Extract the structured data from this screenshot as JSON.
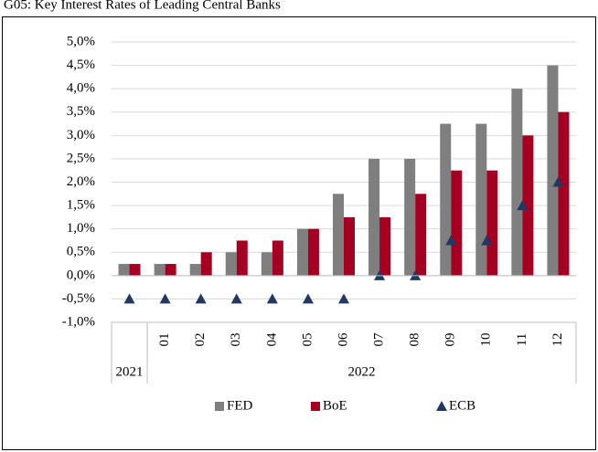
{
  "chart_data": {
    "type": "bar",
    "title": "G05: Key Interest Rates of Leading Central Banks",
    "categories": [
      null,
      "01",
      "02",
      "03",
      "04",
      "05",
      "06",
      "07",
      "08",
      "09",
      "10",
      "11",
      "12"
    ],
    "category_groups": [
      {
        "label": "2021",
        "span": 1
      },
      {
        "label": "2022",
        "span": 12
      }
    ],
    "series": [
      {
        "name": "FED",
        "color": "#7f7f7f",
        "mark": "bar",
        "values": [
          0.25,
          0.25,
          0.25,
          0.5,
          0.5,
          1.0,
          1.75,
          2.5,
          2.5,
          3.25,
          3.25,
          4.0,
          4.5
        ]
      },
      {
        "name": "BoE",
        "color": "#a50021",
        "mark": "bar",
        "values": [
          0.25,
          0.25,
          0.5,
          0.75,
          0.75,
          1.0,
          1.25,
          1.25,
          1.75,
          2.25,
          2.25,
          3.0,
          3.5
        ]
      },
      {
        "name": "ECB",
        "color": "#1f3864",
        "mark": "triangle",
        "values": [
          -0.5,
          -0.5,
          -0.5,
          -0.5,
          -0.5,
          -0.5,
          -0.5,
          0,
          0,
          0.75,
          0.75,
          1.5,
          2.0
        ]
      }
    ],
    "ylim": [
      -1,
      5
    ],
    "yticks": [
      {
        "value": -1,
        "label": "-1,0%"
      },
      {
        "value": -0.5,
        "label": "-0,5%"
      },
      {
        "value": 0,
        "label": "0,0%"
      },
      {
        "value": 0.5,
        "label": "0,5%"
      },
      {
        "value": 1,
        "label": "1,0%"
      },
      {
        "value": 1.5,
        "label": "1,5%"
      },
      {
        "value": 2,
        "label": "2,0%"
      },
      {
        "value": 2.5,
        "label": "2,5%"
      },
      {
        "value": 3,
        "label": "3,0%"
      },
      {
        "value": 3.5,
        "label": "3,5%"
      },
      {
        "value": 4,
        "label": "4,0%"
      },
      {
        "value": 4.5,
        "label": "4,5%"
      },
      {
        "value": 5,
        "label": "5,0%"
      }
    ],
    "grid": true,
    "legend": "bottom"
  }
}
